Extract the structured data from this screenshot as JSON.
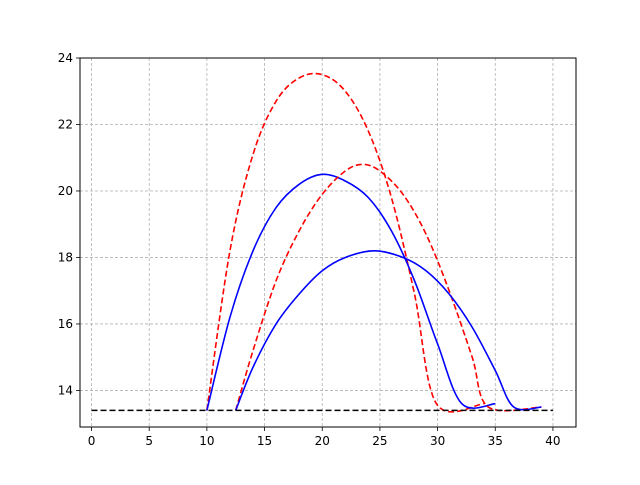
{
  "chart_data": {
    "type": "line",
    "title": "",
    "xlabel": "",
    "ylabel": "",
    "xlim": [
      -1,
      42
    ],
    "ylim": [
      12.9,
      24
    ],
    "xticks": [
      0,
      5,
      10,
      15,
      20,
      25,
      30,
      35,
      40
    ],
    "yticks": [
      14,
      16,
      18,
      20,
      22,
      24
    ],
    "grid": true,
    "legend": "none",
    "series": [
      {
        "style": "dashed",
        "color": "#ff0000",
        "points": [
          [
            10.0,
            13.4
          ],
          [
            12.0,
            18.2
          ],
          [
            14.0,
            21.1
          ],
          [
            16.0,
            22.7
          ],
          [
            18.0,
            23.4
          ],
          [
            20.0,
            23.5
          ],
          [
            22.0,
            23.0
          ],
          [
            24.0,
            21.8
          ],
          [
            26.0,
            19.8
          ],
          [
            28.0,
            16.9
          ],
          [
            29.9,
            13.6
          ],
          [
            34.0,
            13.6
          ]
        ]
      },
      {
        "style": "solid",
        "color": "#0000ff",
        "points": [
          [
            10.0,
            13.4
          ],
          [
            12.0,
            16.2
          ],
          [
            14.0,
            18.2
          ],
          [
            16.0,
            19.5
          ],
          [
            18.0,
            20.2
          ],
          [
            20.0,
            20.5
          ],
          [
            22.0,
            20.3
          ],
          [
            24.0,
            19.8
          ],
          [
            26.0,
            18.8
          ],
          [
            28.0,
            17.3
          ],
          [
            30.0,
            15.4
          ],
          [
            32.1,
            13.6
          ],
          [
            35.0,
            13.6
          ]
        ]
      },
      {
        "style": "dashed",
        "color": "#ff0000",
        "points": [
          [
            12.5,
            13.4
          ],
          [
            14.0,
            15.2
          ],
          [
            16.0,
            17.3
          ],
          [
            18.0,
            18.8
          ],
          [
            20.0,
            19.9
          ],
          [
            22.0,
            20.6
          ],
          [
            23.5,
            20.8
          ],
          [
            25.0,
            20.6
          ],
          [
            27.0,
            19.9
          ],
          [
            29.0,
            18.7
          ],
          [
            31.0,
            17.0
          ],
          [
            33.0,
            15.0
          ],
          [
            34.4,
            13.5
          ],
          [
            39.0,
            13.5
          ]
        ]
      },
      {
        "style": "solid",
        "color": "#0000ff",
        "points": [
          [
            12.5,
            13.4
          ],
          [
            14.0,
            14.7
          ],
          [
            16.0,
            16.0
          ],
          [
            18.0,
            16.9
          ],
          [
            20.0,
            17.6
          ],
          [
            22.0,
            18.0
          ],
          [
            24.5,
            18.2
          ],
          [
            27.0,
            18.0
          ],
          [
            29.0,
            17.6
          ],
          [
            31.0,
            16.9
          ],
          [
            33.0,
            15.9
          ],
          [
            35.0,
            14.6
          ],
          [
            36.6,
            13.5
          ],
          [
            39.0,
            13.5
          ]
        ]
      },
      {
        "style": "dashed",
        "color": "#000000",
        "points": [
          [
            0.0,
            13.4
          ],
          [
            40.0,
            13.4
          ]
        ]
      }
    ]
  }
}
